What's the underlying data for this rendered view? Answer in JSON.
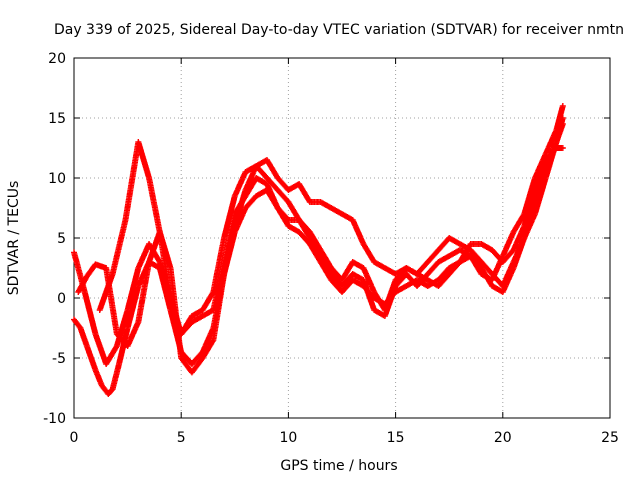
{
  "chart_data": {
    "type": "scatter",
    "title": "Day 339 of 2025, Sidereal Day-to-day VTEC variation (SDTVAR) for receiver nmtn",
    "xlabel": "GPS time / hours",
    "ylabel": "SDTVAR / TECUs",
    "xlim": [
      0,
      25
    ],
    "ylim": [
      -10,
      20
    ],
    "xticks": [
      0,
      5,
      10,
      15,
      20,
      25
    ],
    "yticks": [
      -10,
      -5,
      0,
      5,
      10,
      15,
      20
    ],
    "grid": true,
    "marker": "plus",
    "color": "#ff0000",
    "series": [
      {
        "x": [
          0,
          0.3,
          0.6,
          1,
          1.3,
          1.6,
          1.8,
          2.1,
          2.5,
          3,
          3.5,
          4,
          4.5,
          5,
          5.5,
          6,
          6.5,
          7,
          7.5,
          8,
          8.5,
          9,
          9.5,
          10,
          10.5,
          11,
          11.5,
          12,
          12.5,
          13,
          13.5,
          14,
          14.5,
          15,
          15.5,
          16,
          16.5,
          17,
          17.5,
          18,
          18.5,
          19,
          19.5,
          20,
          20.5,
          21,
          21.5,
          22,
          22.5,
          22.8
        ],
        "y": [
          -1.8,
          -2.5,
          -4,
          -6,
          -7.3,
          -8,
          -7.6,
          -5.5,
          -2.5,
          1,
          3,
          2.5,
          -1,
          -4.5,
          -5.5,
          -4.5,
          -2.5,
          2,
          5.5,
          7.5,
          8.5,
          9,
          7.5,
          6,
          5.5,
          4.5,
          3,
          1.5,
          0.5,
          1.5,
          1,
          0,
          -0.5,
          0.5,
          1,
          1.5,
          1,
          1.5,
          2.5,
          3,
          3.5,
          2.5,
          1,
          0.5,
          2.5,
          5,
          7,
          10,
          13,
          15
        ]
      },
      {
        "x": [
          0,
          0.5,
          1,
          1.5,
          2,
          2.5,
          3,
          3.5,
          4,
          4.5,
          5,
          5.5,
          6,
          6.5,
          7,
          7.5,
          8,
          8.5,
          9,
          9.5,
          10,
          10.5,
          11,
          11.5,
          12,
          12.5,
          13,
          13.5,
          14,
          14.5,
          15,
          15.5,
          16,
          16.5,
          17,
          17.5,
          18,
          18.5,
          19,
          19.5,
          20,
          20.5,
          21,
          21.5,
          22,
          22.5,
          22.8
        ],
        "y": [
          3.8,
          0.5,
          -3,
          -5.5,
          -4,
          -1,
          2.5,
          4.5,
          3,
          0,
          -3,
          -2,
          -1.5,
          -1,
          3,
          7,
          8.5,
          10,
          9.5,
          7.5,
          6.5,
          6.5,
          5,
          3.5,
          2,
          1,
          2,
          1.5,
          -1,
          -1.5,
          1,
          2,
          1,
          2,
          3,
          3.5,
          4,
          3.5,
          2,
          1.5,
          3.5,
          5.5,
          7,
          10,
          12,
          14,
          16
        ]
      },
      {
        "x": [
          0.2,
          0.6,
          1,
          1.5,
          2,
          2.5,
          3,
          3.5,
          4,
          4.5,
          5,
          5.5,
          6,
          6.5,
          7,
          7.5,
          8,
          8.5,
          9,
          9.5,
          10,
          10.5,
          11,
          11.5,
          12,
          12.5,
          13,
          13.5,
          14,
          14.5,
          15,
          15.5,
          16,
          16.5,
          17,
          17.5,
          18,
          18.5,
          19,
          19.5,
          20,
          20.5,
          21,
          21.5,
          22,
          22.5,
          22.8
        ],
        "y": [
          0.5,
          1.8,
          2.8,
          2.5,
          -3,
          -4,
          -2,
          3,
          5.5,
          2.5,
          -5,
          -6.2,
          -5,
          -3.5,
          2,
          6,
          9,
          11,
          10,
          9,
          8,
          6.5,
          5.5,
          4,
          2.5,
          1.5,
          3,
          2.5,
          0.5,
          -1,
          1.5,
          2.5,
          2,
          3,
          4,
          5,
          4.5,
          4,
          3,
          2,
          1,
          3,
          5,
          8,
          11,
          13,
          14.5
        ]
      },
      {
        "x": [
          1.2,
          1.8,
          2.4,
          3,
          3.5,
          4,
          4.5,
          5,
          5.5,
          6,
          6.5,
          7,
          7.5,
          8,
          8.5,
          9,
          9.5,
          10,
          10.5,
          11,
          11.5,
          12,
          12.5,
          13,
          13.5,
          14,
          14.5,
          15,
          15.5,
          16,
          16.5,
          17,
          17.5,
          18,
          18.5,
          19,
          19.5,
          20,
          20.5,
          21,
          21.5,
          22,
          22.5,
          22.8
        ],
        "y": [
          -1,
          2,
          6.5,
          13,
          10,
          5.5,
          0,
          -3,
          -1.5,
          -1,
          0.5,
          5,
          8.5,
          10.5,
          11,
          11.5,
          10,
          9,
          9.5,
          8,
          8,
          7.5,
          7,
          6.5,
          4.5,
          3,
          2.5,
          2,
          2.5,
          2,
          1.5,
          1,
          2,
          3,
          4.5,
          4.5,
          4,
          3,
          4,
          6,
          9,
          11.5,
          12.5,
          12.5
        ]
      }
    ]
  }
}
